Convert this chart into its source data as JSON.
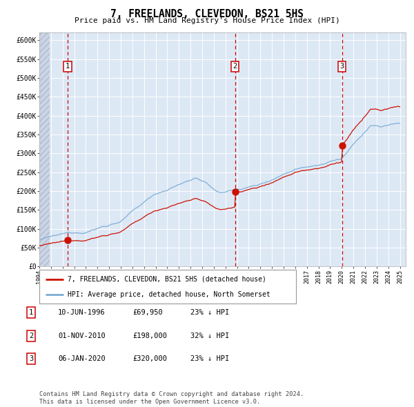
{
  "title": "7, FREELANDS, CLEVEDON, BS21 5HS",
  "subtitle": "Price paid vs. HM Land Registry's House Price Index (HPI)",
  "xlim_start": 1994.0,
  "xlim_end": 2025.5,
  "ylim_min": 0,
  "ylim_max": 620000,
  "yticks": [
    0,
    50000,
    100000,
    150000,
    200000,
    250000,
    300000,
    350000,
    400000,
    450000,
    500000,
    550000,
    600000
  ],
  "hpi_color": "#7aadd4",
  "price_color": "#cc1100",
  "bg_color": "#dde8f5",
  "grid_color": "#ffffff",
  "vline_color": "#cc0000",
  "purchase_dates": [
    1996.44,
    2010.83,
    2020.02
  ],
  "purchase_prices": [
    69950,
    198000,
    320000
  ],
  "legend_label_price": "7, FREELANDS, CLEVEDON, BS21 5HS (detached house)",
  "legend_label_hpi": "HPI: Average price, detached house, North Somerset",
  "table_entries": [
    {
      "num": "1",
      "date": "10-JUN-1996",
      "price": "£69,950",
      "pct": "23% ↓ HPI"
    },
    {
      "num": "2",
      "date": "01-NOV-2010",
      "price": "£198,000",
      "pct": "32% ↓ HPI"
    },
    {
      "num": "3",
      "date": "06-JAN-2020",
      "price": "£320,000",
      "pct": "23% ↓ HPI"
    }
  ],
  "footnote1": "Contains HM Land Registry data © Crown copyright and database right 2024.",
  "footnote2": "This data is licensed under the Open Government Licence v3.0."
}
